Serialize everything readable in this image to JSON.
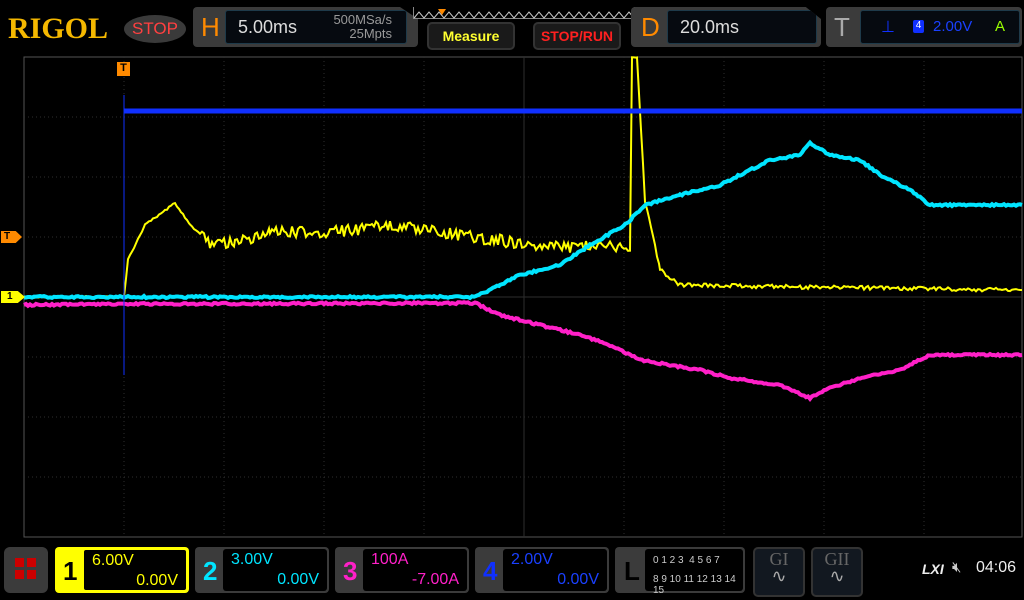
{
  "header": {
    "brand": "RIGOL",
    "run_state": "STOP",
    "horizontal": {
      "label": "H",
      "timebase": "5.00ms",
      "sample_rate": "500MSa/s",
      "memory_depth": "25Mpts"
    },
    "measure_label": "Measure",
    "stop_run_label": "STOP/RUN",
    "delay": {
      "label": "D",
      "value": "20.0ms"
    },
    "trigger": {
      "label": "T",
      "source": "4",
      "level": "2.00V",
      "mode": "A",
      "slope_icon": "rising-edge-icon"
    }
  },
  "markers": {
    "trigger_pos": "T",
    "trigger_level": "T",
    "ch1_ground": "1"
  },
  "channels": [
    {
      "num": "1",
      "scale": "6.00V",
      "offset": "0.00V",
      "color": "#ffff00"
    },
    {
      "num": "2",
      "scale": "3.00V",
      "offset": "0.00V",
      "color": "#00e5ff"
    },
    {
      "num": "3",
      "scale": "100A",
      "offset": "-7.00A",
      "color": "#ff20c8"
    },
    {
      "num": "4",
      "scale": "2.00V",
      "offset": "0.00V",
      "color": "#1030ff"
    }
  ],
  "logic": {
    "label": "L",
    "row1": "0 1 2 3  4 5 6 7",
    "row2": "8 9 10 11 12 13 14 15"
  },
  "generators": [
    {
      "label": "GI"
    },
    {
      "label": "GII"
    }
  ],
  "status": {
    "lxi": "LXI",
    "time": "04:06"
  }
}
